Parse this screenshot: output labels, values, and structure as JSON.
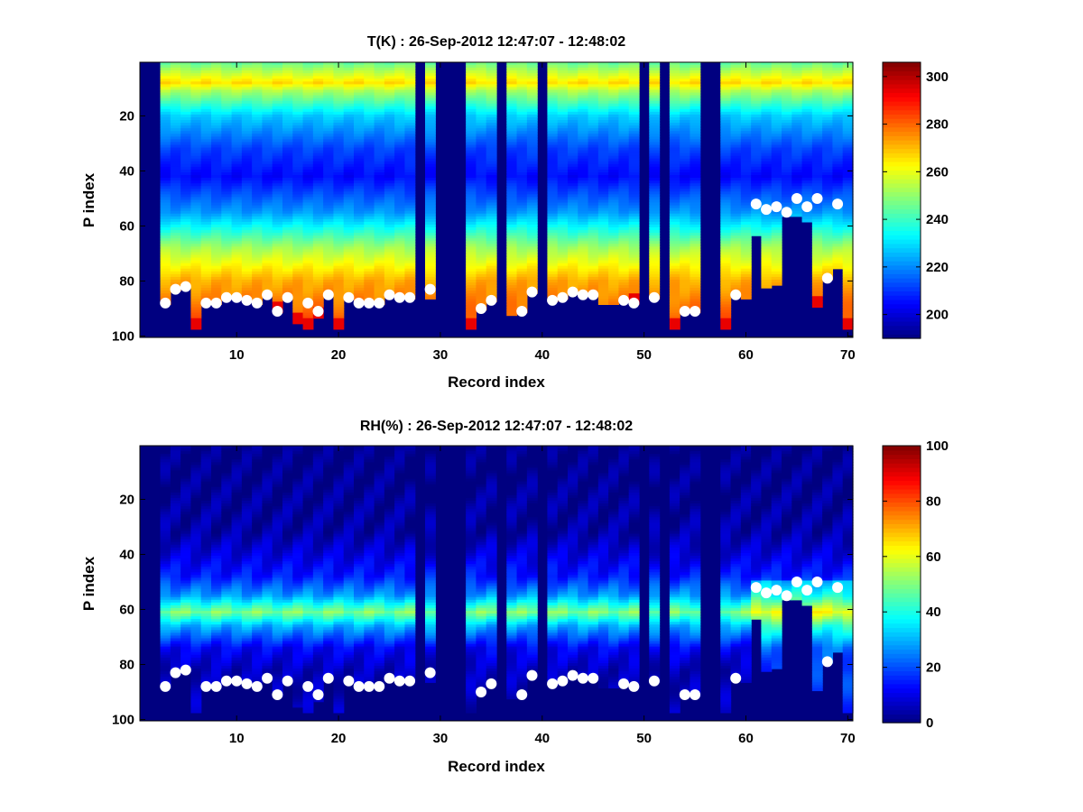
{
  "chart_data": [
    {
      "type": "heatmap",
      "title": "T(K) : 26-Sep-2012 12:47:07 - 12:48:02",
      "xlabel": "Record index",
      "ylabel": "P index",
      "xlim": [
        0.5,
        70.5
      ],
      "ylim": [
        0.5,
        100.5
      ],
      "y_reversed": true,
      "x_ticks": [
        "10",
        "20",
        "30",
        "40",
        "50",
        "60",
        "70"
      ],
      "y_ticks": [
        "20",
        "40",
        "60",
        "80",
        "100"
      ],
      "colorbar": {
        "min": 190,
        "max": 306,
        "ticks": [
          "200",
          "220",
          "240",
          "260",
          "280",
          "300"
        ],
        "colormap": "jet"
      },
      "records": 70,
      "levels": 100,
      "marker_color": "#ffffff",
      "markers": [
        [
          3,
          88
        ],
        [
          4,
          83
        ],
        [
          5,
          82
        ],
        [
          7,
          88
        ],
        [
          8,
          88
        ],
        [
          9,
          86
        ],
        [
          10,
          86
        ],
        [
          11,
          87
        ],
        [
          12,
          88
        ],
        [
          13,
          85
        ],
        [
          14,
          91
        ],
        [
          15,
          86
        ],
        [
          17,
          88
        ],
        [
          18,
          91
        ],
        [
          19,
          85
        ],
        [
          21,
          86
        ],
        [
          22,
          88
        ],
        [
          23,
          88
        ],
        [
          24,
          88
        ],
        [
          25,
          85
        ],
        [
          26,
          86
        ],
        [
          27,
          86
        ],
        [
          29,
          83
        ],
        [
          34,
          90
        ],
        [
          35,
          87
        ],
        [
          38,
          91
        ],
        [
          39,
          84
        ],
        [
          41,
          87
        ],
        [
          42,
          86
        ],
        [
          43,
          84
        ],
        [
          44,
          85
        ],
        [
          45,
          85
        ],
        [
          48,
          87
        ],
        [
          49,
          88
        ],
        [
          51,
          86
        ],
        [
          54,
          91
        ],
        [
          55,
          91
        ],
        [
          59,
          85
        ],
        [
          61,
          52
        ],
        [
          62,
          54
        ],
        [
          63,
          53
        ],
        [
          64,
          55
        ],
        [
          65,
          50
        ],
        [
          66,
          53
        ],
        [
          67,
          50
        ],
        [
          68,
          79
        ],
        [
          69,
          52
        ]
      ]
    },
    {
      "type": "heatmap",
      "title": "RH(%) : 26-Sep-2012 12:47:07 - 12:48:02",
      "xlabel": "Record index",
      "ylabel": "P index",
      "xlim": [
        0.5,
        70.5
      ],
      "ylim": [
        0.5,
        100.5
      ],
      "y_reversed": true,
      "x_ticks": [
        "10",
        "20",
        "30",
        "40",
        "50",
        "60",
        "70"
      ],
      "y_ticks": [
        "20",
        "40",
        "60",
        "80",
        "100"
      ],
      "colorbar": {
        "min": 0,
        "max": 100,
        "ticks": [
          "0",
          "20",
          "40",
          "60",
          "80",
          "100"
        ],
        "colormap": "jet"
      },
      "records": 70,
      "levels": 100,
      "marker_color": "#ffffff",
      "markers": [
        [
          3,
          88
        ],
        [
          4,
          83
        ],
        [
          5,
          82
        ],
        [
          7,
          88
        ],
        [
          8,
          88
        ],
        [
          9,
          86
        ],
        [
          10,
          86
        ],
        [
          11,
          87
        ],
        [
          12,
          88
        ],
        [
          13,
          85
        ],
        [
          14,
          91
        ],
        [
          15,
          86
        ],
        [
          17,
          88
        ],
        [
          18,
          91
        ],
        [
          19,
          85
        ],
        [
          21,
          86
        ],
        [
          22,
          88
        ],
        [
          23,
          88
        ],
        [
          24,
          88
        ],
        [
          25,
          85
        ],
        [
          26,
          86
        ],
        [
          27,
          86
        ],
        [
          29,
          83
        ],
        [
          34,
          90
        ],
        [
          35,
          87
        ],
        [
          38,
          91
        ],
        [
          39,
          84
        ],
        [
          41,
          87
        ],
        [
          42,
          86
        ],
        [
          43,
          84
        ],
        [
          44,
          85
        ],
        [
          45,
          85
        ],
        [
          48,
          87
        ],
        [
          49,
          88
        ],
        [
          51,
          86
        ],
        [
          54,
          91
        ],
        [
          55,
          91
        ],
        [
          59,
          85
        ],
        [
          61,
          52
        ],
        [
          62,
          54
        ],
        [
          63,
          53
        ],
        [
          64,
          55
        ],
        [
          65,
          50
        ],
        [
          66,
          53
        ],
        [
          67,
          50
        ],
        [
          68,
          79
        ],
        [
          69,
          52
        ]
      ]
    }
  ],
  "profile_model": {
    "empty_records": [
      1,
      2,
      28,
      30,
      31,
      32,
      36,
      40,
      50,
      52,
      56,
      57
    ],
    "partial_records": [
      [
        29,
        86
      ],
      [
        37,
        92
      ],
      [
        60,
        86
      ]
    ],
    "surface_level": {
      "6": 97,
      "14": 91,
      "16": 95,
      "17": 97,
      "18": 93,
      "20": 97,
      "33": 97,
      "49": 88,
      "53": 97,
      "58": 97,
      "67": 89,
      "70": 97
    },
    "record_max_level": {
      "61": 63,
      "62": 82,
      "63": 81,
      "64": 56,
      "65": 56,
      "66": 58,
      "67": 89,
      "68": 79,
      "69": 75,
      "70": 97
    },
    "temperature_bands_K": [
      {
        "level": 1,
        "value": 246
      },
      {
        "level": 4,
        "value": 255
      },
      {
        "level": 8,
        "value": 266
      },
      {
        "level": 11,
        "value": 253
      },
      {
        "level": 20,
        "value": 228
      },
      {
        "level": 32,
        "value": 212
      },
      {
        "level": 42,
        "value": 205
      },
      {
        "level": 55,
        "value": 222
      },
      {
        "level": 68,
        "value": 252
      },
      {
        "level": 80,
        "value": 272
      },
      {
        "level": 100,
        "value": 285
      }
    ],
    "humidity_bands_pct": [
      {
        "level": 1,
        "value": 1
      },
      {
        "level": 32,
        "value": 4
      },
      {
        "level": 40,
        "value": 9
      },
      {
        "level": 48,
        "value": 15
      },
      {
        "level": 55,
        "value": 28
      },
      {
        "level": 61,
        "value": 50
      },
      {
        "level": 66,
        "value": 30
      },
      {
        "level": 74,
        "value": 12
      },
      {
        "level": 82,
        "value": 6
      },
      {
        "level": 100,
        "value": 6
      }
    ]
  }
}
